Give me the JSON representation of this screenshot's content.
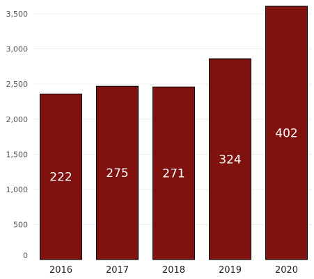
{
  "chart_data": {
    "type": "bar",
    "categories": [
      "2016",
      "2017",
      "2018",
      "2019",
      "2020"
    ],
    "values": [
      2360,
      2470,
      2460,
      2860,
      3610
    ],
    "bar_labels": [
      "222",
      "275",
      "271",
      "324",
      "402"
    ],
    "ylim": [
      0,
      3600
    ],
    "yticks": [
      0,
      500,
      1000,
      1500,
      2000,
      2500,
      3000,
      3500
    ],
    "ytick_labels": [
      "0",
      "500",
      "1,000",
      "1,500",
      "2,000",
      "2,500",
      "3,000",
      "3,500"
    ],
    "grid": true,
    "title": "",
    "xlabel": "",
    "ylabel": "",
    "colors": {
      "bar": "#7f120e",
      "bar_border": "#000000",
      "label": "#ffffff"
    }
  }
}
